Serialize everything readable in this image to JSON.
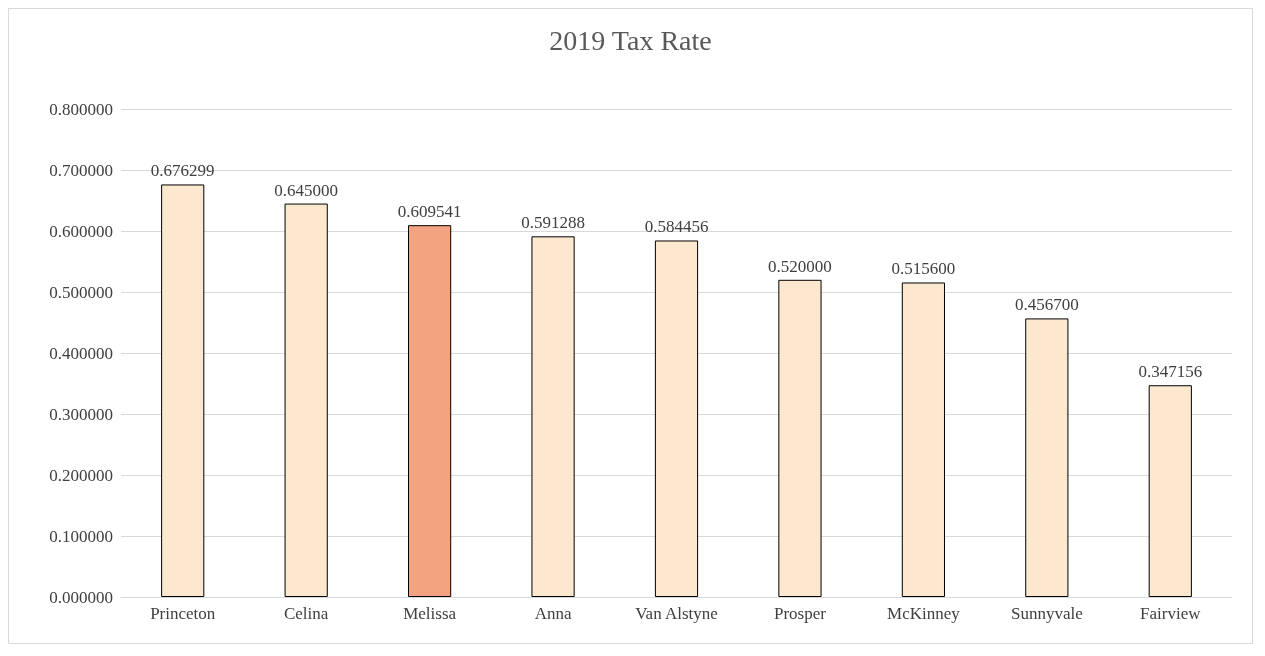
{
  "chart_data": {
    "type": "bar",
    "title": "2019 Tax Rate",
    "categories": [
      "Princeton",
      "Celina",
      "Melissa",
      "Anna",
      "Van Alstyne",
      "Prosper",
      "McKinney",
      "Sunnyvale",
      "Fairview"
    ],
    "values": [
      0.676299,
      0.645,
      0.609541,
      0.591288,
      0.584456,
      0.52,
      0.5156,
      0.4567,
      0.347156
    ],
    "colors": [
      "#fbe8cf",
      "#fbe8cf",
      "#f4a381",
      "#fbe8cf",
      "#fbe8cf",
      "#fbe8cf",
      "#fbe8cf",
      "#fbe8cf",
      "#fbe8cf"
    ],
    "value_labels": [
      "0.676299",
      "0.645000",
      "0.609541",
      "0.591288",
      "0.584456",
      "0.520000",
      "0.515600",
      "0.456700",
      "0.347156"
    ],
    "ylim": [
      0,
      0.8
    ],
    "yticks": [
      {
        "value": 0,
        "label": "0.000000"
      },
      {
        "value": 0.1,
        "label": "0.100000"
      },
      {
        "value": 0.2,
        "label": "0.200000"
      },
      {
        "value": 0.3,
        "label": "0.300000"
      },
      {
        "value": 0.4,
        "label": "0.400000"
      },
      {
        "value": 0.5,
        "label": "0.500000"
      },
      {
        "value": 0.6,
        "label": "0.600000"
      },
      {
        "value": 0.7,
        "label": "0.700000"
      },
      {
        "value": 0.8,
        "label": "0.800000"
      }
    ],
    "grid": "y"
  }
}
